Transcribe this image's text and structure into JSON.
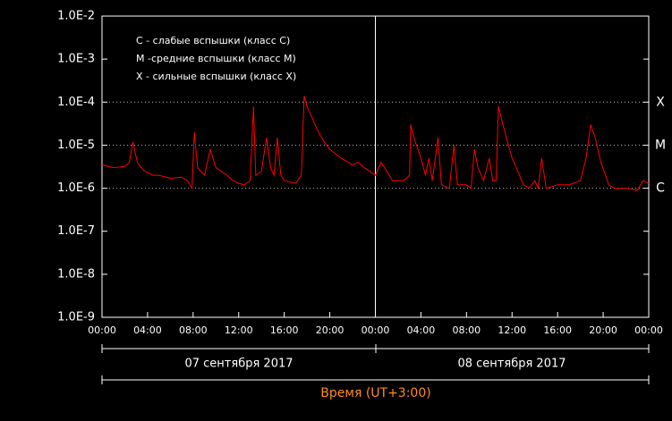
{
  "chart_data": {
    "type": "line",
    "log_scale": true,
    "legend": [
      "C - слабые вспышки (класс C)",
      "M -средние вспышки (класс M)",
      "X - сильные вспышки (класс X)"
    ],
    "levels": [
      {
        "label": "X",
        "value": 0.0001
      },
      {
        "label": "M",
        "value": 1e-05
      },
      {
        "label": "C",
        "value": 1e-06
      }
    ],
    "days": [
      "07 сентября 2017",
      "08 сентября 2017"
    ],
    "xlabel": "Время (UT+3:00)",
    "xlim": [
      0,
      48
    ],
    "xticks": [
      {
        "value": 0,
        "label": "00:00"
      },
      {
        "value": 4,
        "label": "04:00"
      },
      {
        "value": 8,
        "label": "08:00"
      },
      {
        "value": 12,
        "label": "12:00"
      },
      {
        "value": 16,
        "label": "16:00"
      },
      {
        "value": 20,
        "label": "20:00"
      },
      {
        "value": 24,
        "label": "00:00"
      },
      {
        "value": 28,
        "label": "04:00"
      },
      {
        "value": 32,
        "label": "08:00"
      },
      {
        "value": 36,
        "label": "12:00"
      },
      {
        "value": 40,
        "label": "16:00"
      },
      {
        "value": 44,
        "label": "20:00"
      },
      {
        "value": 48,
        "label": "00:00"
      }
    ],
    "ylim": [
      1e-09,
      0.01
    ],
    "yticks": [
      {
        "value": 0.01,
        "label": "1.0E-2"
      },
      {
        "value": 0.001,
        "label": "1.0E-3"
      },
      {
        "value": 0.0001,
        "label": "1.0E-4"
      },
      {
        "value": 1e-05,
        "label": "1.0E-5"
      },
      {
        "value": 1e-06,
        "label": "1.0E-6"
      },
      {
        "value": 1e-07,
        "label": "1.0E-7"
      },
      {
        "value": 1e-08,
        "label": "1.0E-8"
      },
      {
        "value": 1e-09,
        "label": "1.0E-9"
      }
    ],
    "series": [
      {
        "color": "#ff0000",
        "x": [
          0,
          1,
          2,
          2.4,
          2.7,
          3.1,
          3.7,
          4.5,
          5,
          6,
          7,
          7.5,
          7.9,
          8.1,
          8.4,
          9,
          9.5,
          10,
          11,
          11.5,
          12,
          12.5,
          13,
          13.3,
          13.5,
          14,
          14.45,
          14.8,
          15.1,
          15.4,
          15.7,
          16,
          17,
          17.5,
          17.75,
          18,
          18.5,
          19,
          19.5,
          20,
          21,
          22,
          22.5,
          23,
          23.5,
          24,
          24.5,
          25,
          25.5,
          26,
          26.5,
          27,
          27.1,
          27.5,
          28,
          28.4,
          28.7,
          29,
          29.5,
          29.8,
          30.5,
          30.9,
          31.2,
          32,
          32.4,
          32.7,
          33,
          33.5,
          34,
          34.3,
          34.6,
          34.8,
          35.2,
          35.6,
          36,
          36.5,
          37,
          37.5,
          38,
          38.3,
          38.6,
          39,
          40,
          41,
          42,
          42.5,
          42.9,
          43.3,
          43.8,
          44.5,
          45,
          46,
          47,
          47.5,
          48
        ],
        "values": [
          3.5e-06,
          3e-06,
          3.2e-06,
          4e-06,
          1.2e-05,
          4e-06,
          2.5e-06,
          2e-06,
          2e-06,
          1.7e-06,
          1.8e-06,
          1.5e-06,
          1e-06,
          2e-05,
          3e-06,
          2e-06,
          8e-06,
          3e-06,
          2e-06,
          1.5e-06,
          1.3e-06,
          1.2e-06,
          1.5e-06,
          8e-05,
          2e-06,
          2.5e-06,
          1.5e-05,
          3e-06,
          2e-06,
          1.5e-05,
          2e-06,
          1.5e-06,
          1.3e-06,
          2e-06,
          0.00014,
          8e-05,
          4e-05,
          2e-05,
          1.2e-05,
          8e-06,
          5e-06,
          3.5e-06,
          4e-06,
          3e-06,
          2.5e-06,
          2e-06,
          4e-06,
          2.5e-06,
          1.5e-06,
          1.5e-06,
          1.5e-06,
          2e-06,
          3e-05,
          1.2e-05,
          5e-06,
          2e-06,
          5e-06,
          1.5e-06,
          1.5e-05,
          1.2e-06,
          1e-06,
          1e-05,
          1.2e-06,
          1.2e-06,
          1e-06,
          8e-06,
          3e-06,
          1.5e-06,
          5e-06,
          1.5e-06,
          1.5e-06,
          8e-05,
          3e-05,
          1.2e-05,
          5e-06,
          2.5e-06,
          1.2e-06,
          1e-06,
          1.5e-06,
          1e-06,
          5e-06,
          1e-06,
          1.2e-06,
          1.2e-06,
          1.5e-06,
          5e-06,
          3e-05,
          1.5e-05,
          4e-06,
          1.2e-06,
          1e-06,
          1e-06,
          9e-07,
          1.5e-06,
          1.3e-06
        ]
      }
    ]
  }
}
